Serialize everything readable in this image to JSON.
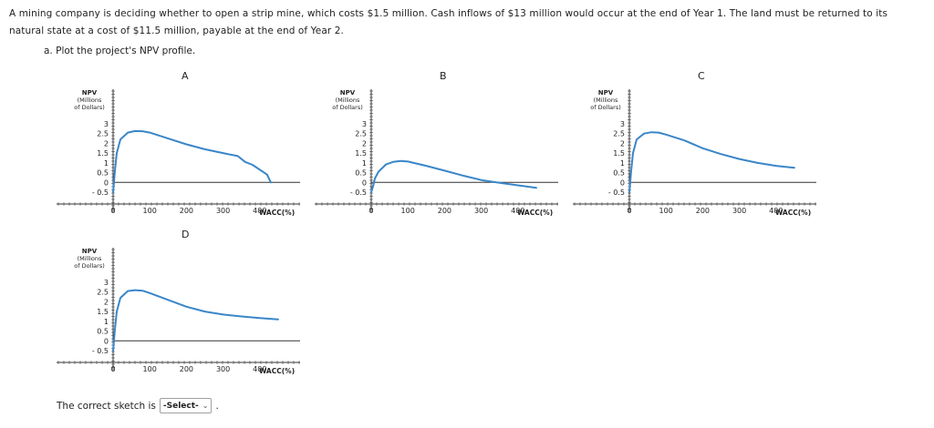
{
  "question": {
    "text": "A mining company is deciding whether to open a strip mine, which costs $1.5 million. Cash inflows of $13 million would occur at the end of Year 1. The land must be returned to its natural state at a cost of $11.5 million, payable at the end of Year 2.",
    "part_a": "a. Plot the project's NPV profile."
  },
  "answer": {
    "prompt": "The correct sketch is",
    "select_value": "-Select-",
    "suffix": "."
  },
  "colors": {
    "curve": "#3a86c8",
    "axis": "#333333"
  },
  "chart_data": [
    {
      "type": "line",
      "option": "A",
      "ylabel": [
        "NPV",
        "(Millions",
        "of Dollars)"
      ],
      "xlabel": "WACC(%)",
      "y_ticks": [
        "3",
        "2.5",
        "2",
        "1.5",
        "1",
        "0.5",
        "0",
        "- 0.5"
      ],
      "x_ticks": [
        "0",
        "100",
        "200",
        "300",
        "400"
      ],
      "xlim": [
        0,
        500
      ],
      "ylim": [
        -0.5,
        3
      ],
      "x": [
        0,
        5,
        10,
        20,
        40,
        60,
        80,
        100,
        150,
        200,
        250,
        300,
        340,
        360,
        380,
        420,
        430
      ],
      "y": [
        -0.5,
        0.6,
        1.5,
        2.2,
        2.55,
        2.63,
        2.62,
        2.55,
        2.25,
        1.95,
        1.7,
        1.5,
        1.35,
        1.05,
        0.9,
        0.4,
        0.0
      ]
    },
    {
      "type": "line",
      "option": "B",
      "ylabel": [
        "NPV",
        "(Millions",
        "of Dollars)"
      ],
      "xlabel": "WACC(%)",
      "y_ticks": [
        "3",
        "2.5",
        "2",
        "1.5",
        "1",
        "0.5",
        "0",
        "- 0.5"
      ],
      "x_ticks": [
        "0",
        "100",
        "200",
        "300",
        "400"
      ],
      "xlim": [
        0,
        500
      ],
      "ylim": [
        -0.5,
        3
      ],
      "x": [
        0,
        5,
        10,
        20,
        40,
        60,
        80,
        100,
        150,
        200,
        250,
        300,
        350,
        400,
        450
      ],
      "y": [
        -0.5,
        -0.2,
        0.2,
        0.55,
        0.92,
        1.05,
        1.1,
        1.07,
        0.85,
        0.6,
        0.35,
        0.12,
        -0.02,
        -0.15,
        -0.28
      ]
    },
    {
      "type": "line",
      "option": "C",
      "ylabel": [
        "NPV",
        "(Millions",
        "of Dollars)"
      ],
      "xlabel": "WACC(%)",
      "y_ticks": [
        "3",
        "2.5",
        "2",
        "1.5",
        "1",
        "0.5",
        "0",
        "- 0.5"
      ],
      "x_ticks": [
        "0",
        "100",
        "200",
        "300",
        "400"
      ],
      "xlim": [
        0,
        500
      ],
      "ylim": [
        -0.5,
        3
      ],
      "x": [
        0,
        5,
        10,
        20,
        40,
        60,
        80,
        100,
        150,
        200,
        250,
        300,
        350,
        400,
        450
      ],
      "y": [
        -0.5,
        0.6,
        1.5,
        2.2,
        2.5,
        2.57,
        2.55,
        2.45,
        2.15,
        1.75,
        1.45,
        1.2,
        1.0,
        0.85,
        0.75
      ]
    },
    {
      "type": "line",
      "option": "D",
      "ylabel": [
        "NPV",
        "(Millions",
        "of Dollars)"
      ],
      "xlabel": "WACC(%)",
      "y_ticks": [
        "3",
        "2.5",
        "2",
        "1.5",
        "1",
        "0.5",
        "0",
        "- 0.5"
      ],
      "x_ticks": [
        "0",
        "100",
        "200",
        "300",
        "400"
      ],
      "xlim": [
        0,
        500
      ],
      "ylim": [
        -0.5,
        3
      ],
      "x": [
        0,
        5,
        10,
        20,
        40,
        60,
        80,
        100,
        150,
        200,
        250,
        300,
        350,
        400,
        450
      ],
      "y": [
        -0.5,
        0.6,
        1.5,
        2.2,
        2.55,
        2.6,
        2.57,
        2.45,
        2.1,
        1.75,
        1.5,
        1.35,
        1.25,
        1.17,
        1.1
      ]
    }
  ]
}
